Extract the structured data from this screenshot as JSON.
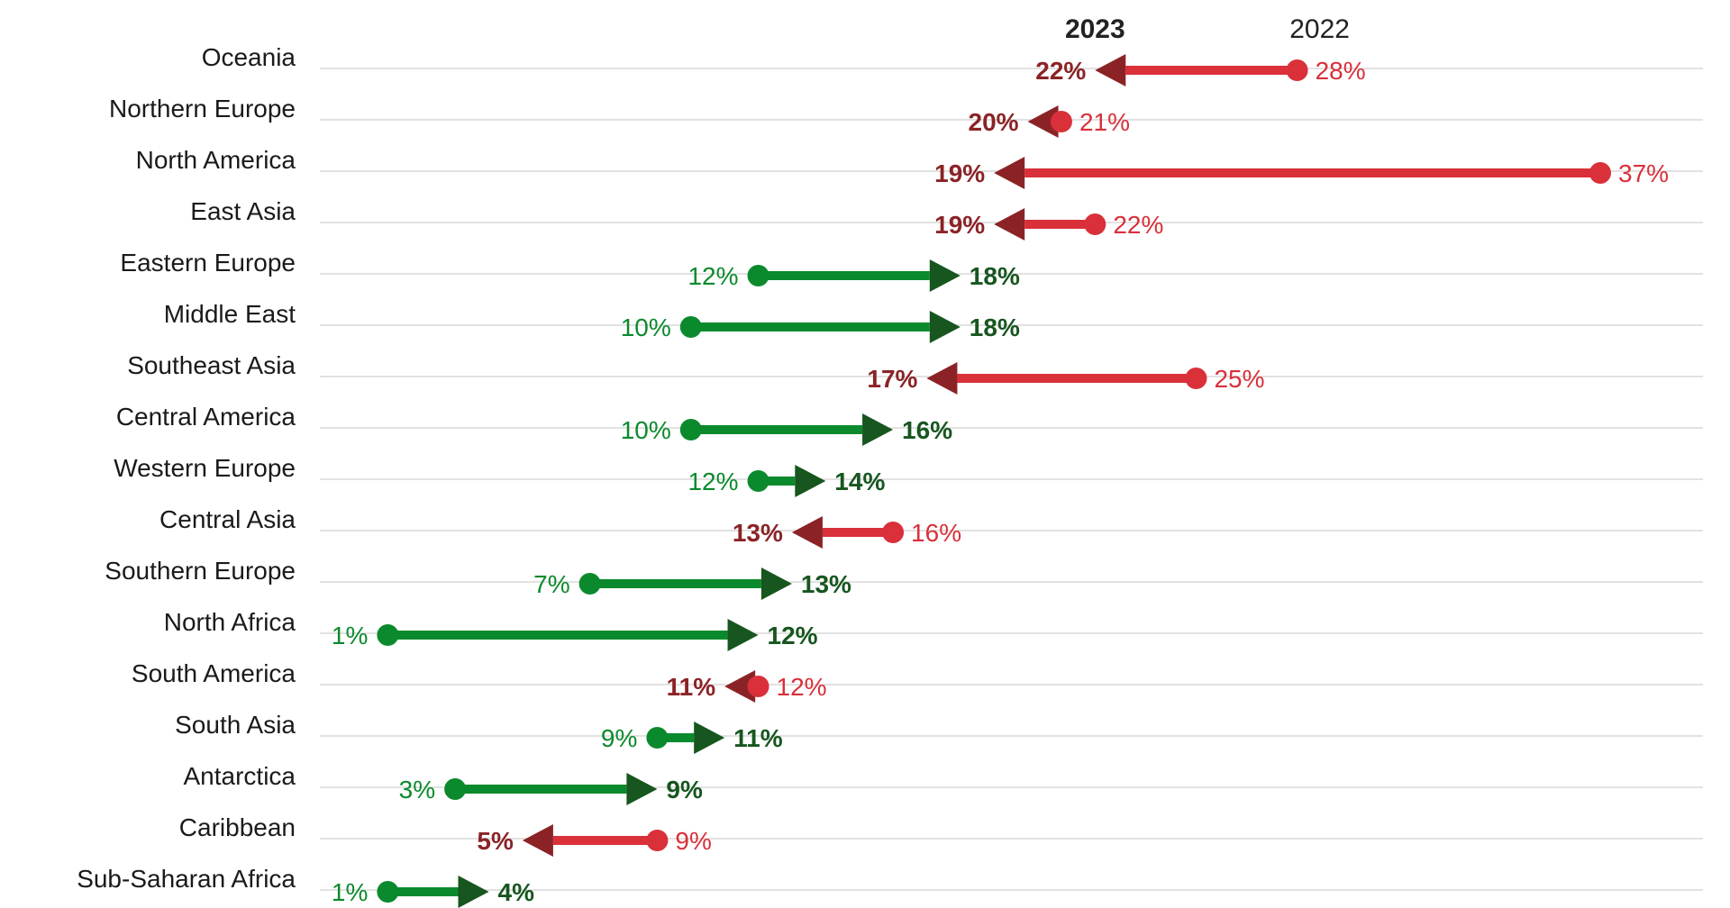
{
  "chart_data": {
    "type": "arrow-dot",
    "title": "",
    "xlabel": "",
    "ylabel": "",
    "xlim": [
      0,
      37
    ],
    "series": [
      {
        "name": "2023"
      },
      {
        "name": "2022"
      }
    ],
    "categories": [
      "Oceania",
      "Northern Europe",
      "North America",
      "East Asia",
      "Eastern Europe",
      "Middle East",
      "Southeast Asia",
      "Central America",
      "Western Europe",
      "Central Asia",
      "Southern Europe",
      "North Africa",
      "South America",
      "South Asia",
      "Antarctica",
      "Caribbean",
      "Sub-Saharan Africa"
    ],
    "values_2022": [
      28,
      21,
      37,
      22,
      12,
      10,
      25,
      10,
      12,
      16,
      7,
      1,
      12,
      9,
      3,
      9,
      1
    ],
    "values_2023": [
      22,
      20,
      19,
      19,
      18,
      18,
      17,
      16,
      14,
      13,
      13,
      12,
      11,
      11,
      9,
      5,
      4
    ],
    "value_labels_2022": [
      "28%",
      "21%",
      "37%",
      "22%",
      "12%",
      "10%",
      "25%",
      "10%",
      "12%",
      "16%",
      "7%",
      "1%",
      "12%",
      "9%",
      "3%",
      "9%",
      "1%"
    ],
    "value_labels_2023": [
      "22%",
      "20%",
      "19%",
      "19%",
      "18%",
      "18%",
      "17%",
      "16%",
      "14%",
      "13%",
      "13%",
      "12%",
      "11%",
      "11%",
      "9%",
      "5%",
      "4%"
    ],
    "colors": {
      "increase_line": "#0b8a2d",
      "increase_arrow": "#17561f",
      "decrease_line": "#d9303a",
      "decrease_arrow": "#8b2326",
      "decrease_start_label": "#d9303a",
      "decrease_end_label": "#8b2326",
      "increase_start_label": "#0b8a2d",
      "increase_end_label": "#17561f"
    }
  }
}
